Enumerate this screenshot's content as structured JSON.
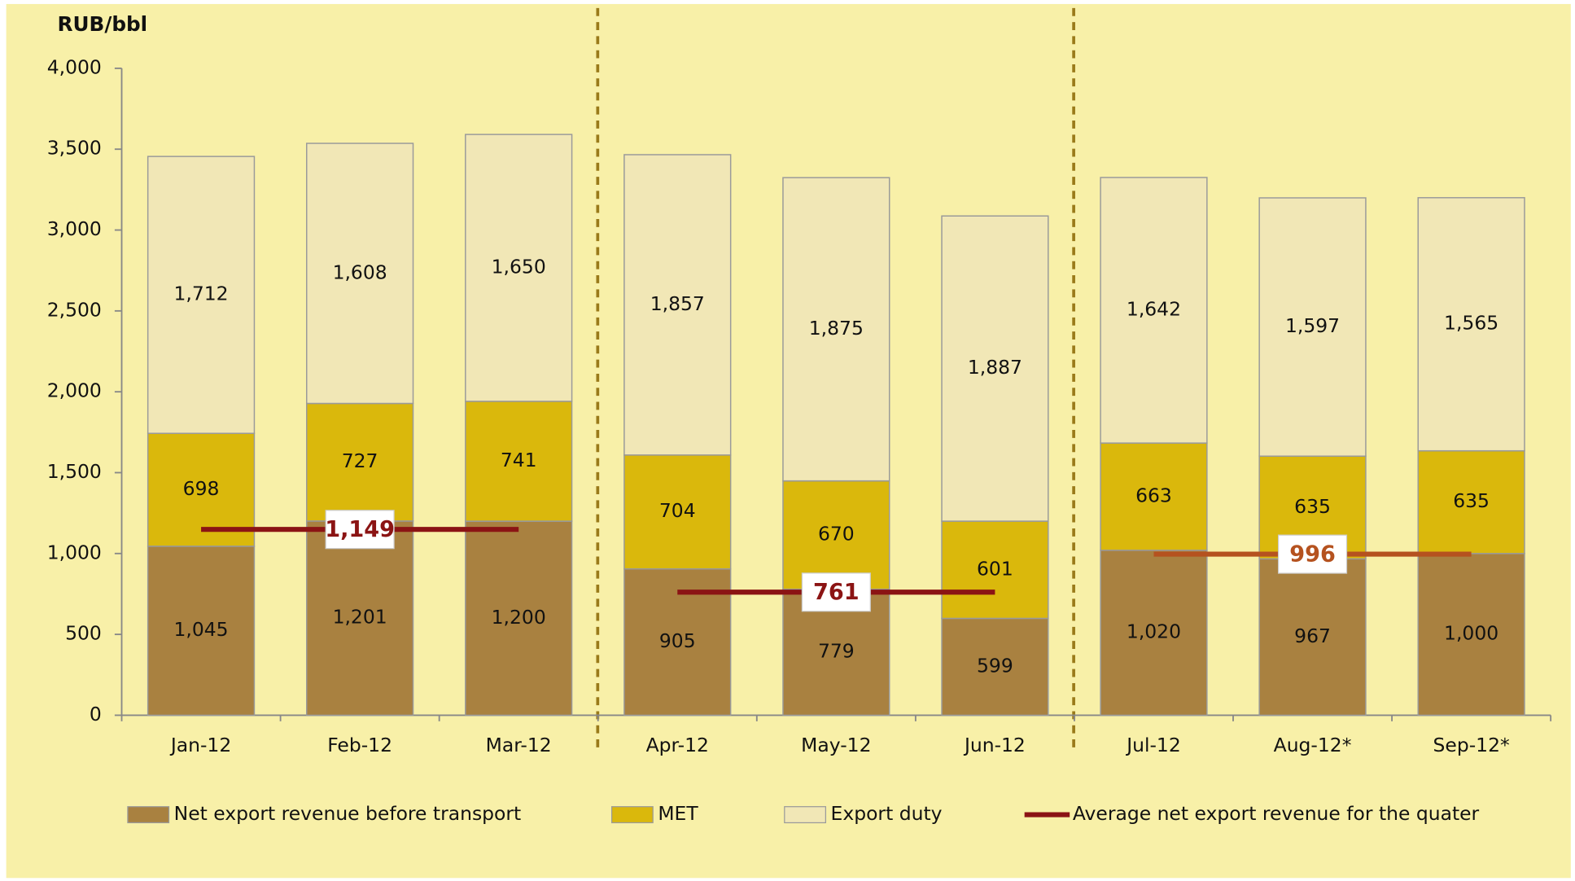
{
  "chart_data": {
    "type": "stacked_bar",
    "y_label": "RUB/bbl",
    "categories": [
      "Jan-12",
      "Feb-12",
      "Mar-12",
      "Apr-12",
      "May-12",
      "Jun-12",
      "Jul-12",
      "Aug-12*",
      "Sep-12*"
    ],
    "series": [
      {
        "name": "Net export revenue before transport",
        "color": "#a98140",
        "values": [
          1045,
          1201,
          1200,
          905,
          779,
          599,
          1020,
          967,
          1000
        ],
        "value_labels": [
          "1,045",
          "1,201",
          "1,200",
          "905",
          "779",
          "599",
          "1,020",
          "967",
          "1,000"
        ]
      },
      {
        "name": "MET",
        "color": "#dab80c",
        "values": [
          698,
          727,
          741,
          704,
          670,
          601,
          663,
          635,
          635
        ]
      },
      {
        "name": "Export duty",
        "color": "#f1e7b6",
        "values": [
          1712,
          1608,
          1650,
          1857,
          1875,
          1887,
          1642,
          1597,
          1565
        ],
        "value_labels": [
          "1,712",
          "1,608",
          "1,650",
          "1,857",
          "1,875",
          "1,887",
          "1,642",
          "1,597",
          "1,565"
        ]
      },
      {
        "name": "Average net export revenue for the quater",
        "type": "line",
        "color": "#8b1414",
        "point_colors": [
          "#8b1414",
          "#8b1414",
          "#8b1414",
          "#8b1414",
          "#8b1414",
          "#8b1414",
          "#b5521f",
          "#b5521f",
          "#b5521f"
        ],
        "values": [
          1149,
          1149,
          1149,
          761,
          761,
          761,
          996,
          996,
          996
        ],
        "value_labels": [
          null,
          "1,149",
          null,
          null,
          "761",
          null,
          null,
          "996",
          null
        ]
      }
    ],
    "ylim": [
      0,
      4000
    ],
    "yticks": [
      0,
      500,
      {
        "value": 1000,
        "label": "1,000"
      },
      {
        "value": 1500,
        "label": "1,500"
      },
      {
        "value": 2000,
        "label": "2,000"
      },
      {
        "value": 2500,
        "label": "2,500"
      },
      {
        "value": 3000,
        "label": "3,000"
      },
      {
        "value": 3500,
        "label": "3,500"
      },
      {
        "value": 4000,
        "label": "4,000"
      }
    ]
  }
}
